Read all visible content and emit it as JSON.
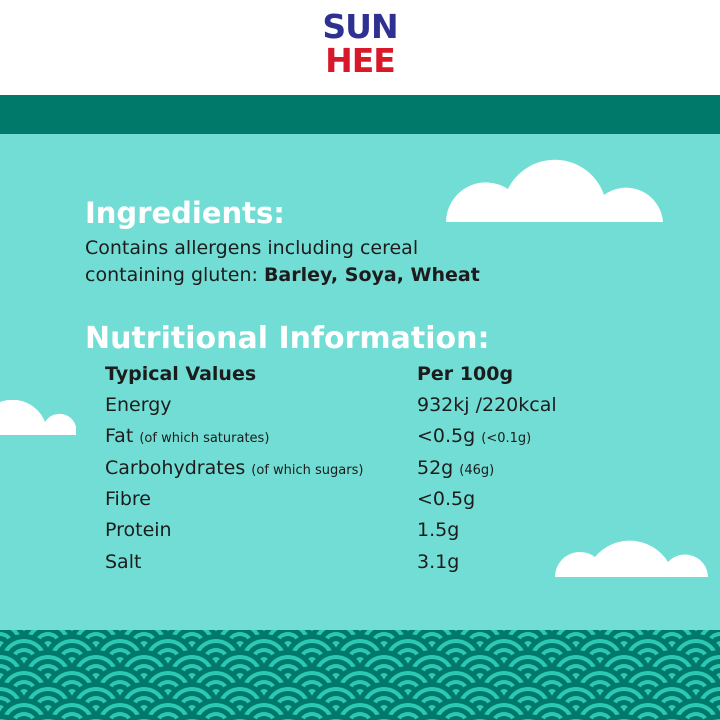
{
  "logo": {
    "line1": "SUN",
    "line2": "HEE",
    "colors": {
      "line1": "#2e3192",
      "line2": "#d7192a"
    }
  },
  "colors": {
    "background": "#72ddd5",
    "band": "#00786a",
    "waves_dark": "#00786a",
    "waves_light": "#2cc7b5"
  },
  "ingredients": {
    "title": "Ingredients:",
    "text1": "Contains allergens including cereal",
    "text2": "containing gluten: ",
    "allergens": "Barley, Soya, Wheat"
  },
  "nutrition": {
    "title": "Nutritional Information:",
    "header": {
      "label": "Typical Values",
      "value": "Per 100g"
    },
    "rows": [
      {
        "label": "Energy",
        "sub": "",
        "value": "932kj /220kcal",
        "value_sub": ""
      },
      {
        "label": "Fat",
        "sub": "(of which saturates)",
        "value": "<0.5g",
        "value_sub": "(<0.1g)"
      },
      {
        "label": "Carbohydrates",
        "sub": "(of which sugars)",
        "value": "52g",
        "value_sub": "(46g)"
      },
      {
        "label": "Fibre",
        "sub": "",
        "value": "<0.5g",
        "value_sub": ""
      },
      {
        "label": "Protein",
        "sub": "",
        "value": "1.5g",
        "value_sub": ""
      },
      {
        "label": "Salt",
        "sub": "",
        "value": "3.1g",
        "value_sub": ""
      }
    ]
  }
}
